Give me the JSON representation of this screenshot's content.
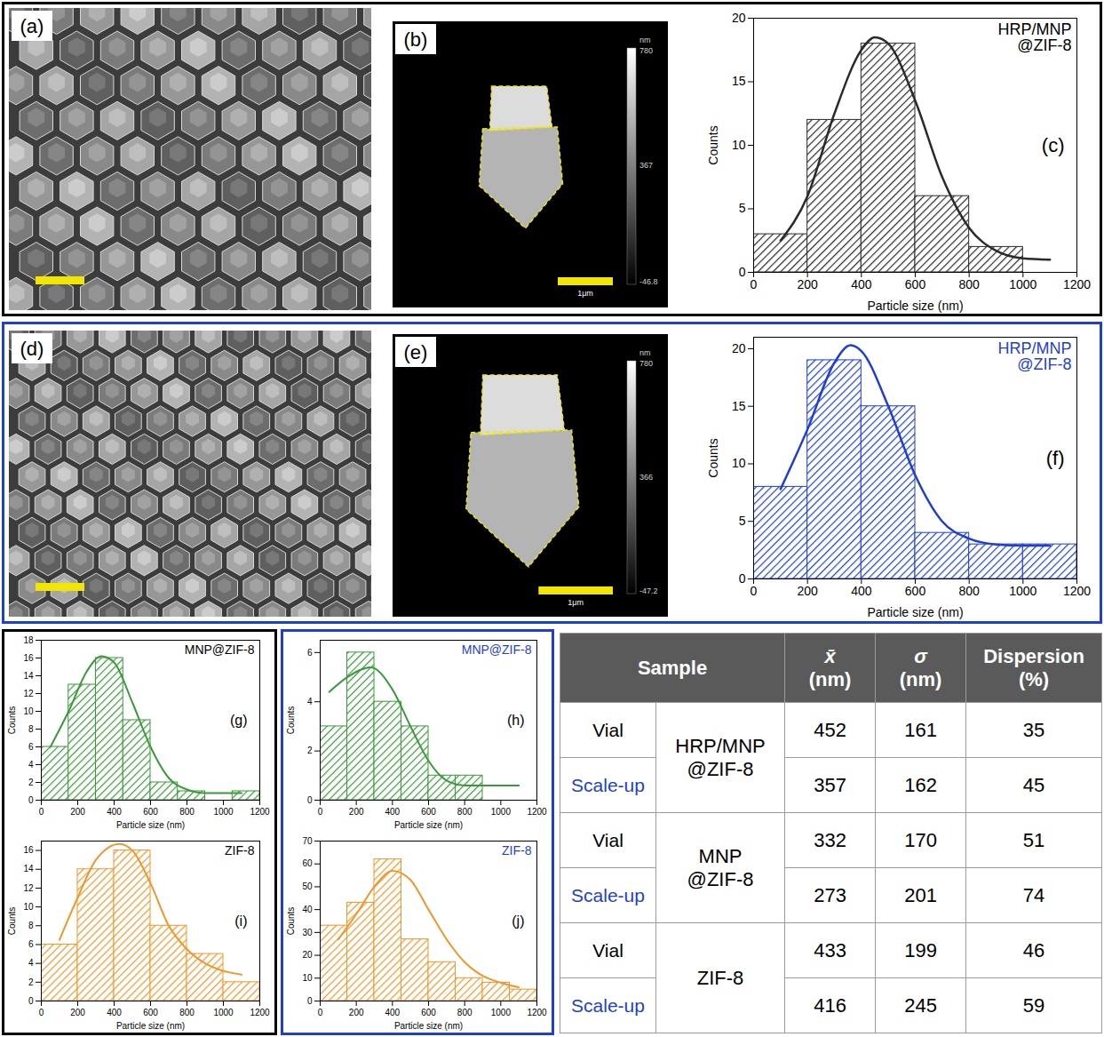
{
  "chart_data": [
    {
      "panel": "(c)",
      "type": "histogram",
      "title": "HRP/MNP @ZIF-8",
      "color": "#2a2a2a",
      "bins": [
        0,
        200,
        400,
        600,
        800,
        1000
      ],
      "counts": [
        3,
        12,
        18,
        6,
        2
      ],
      "fit": {
        "x": [
          100,
          200,
          300,
          400,
          450,
          500,
          600,
          700,
          800,
          900,
          1000,
          1100
        ],
        "y": [
          2.5,
          6,
          12.5,
          17.5,
          18.5,
          18,
          13.5,
          7.5,
          3.5,
          1.7,
          1.1,
          1.0
        ]
      },
      "x_label": "Particle size (nm)",
      "y_label": "Counts",
      "xlim": [
        0,
        1200
      ],
      "xticks": [
        0,
        200,
        400,
        600,
        800,
        1000,
        1200
      ],
      "ylim": [
        0,
        20
      ],
      "yticks": [
        0,
        5,
        10,
        15,
        20
      ]
    },
    {
      "panel": "(f)",
      "type": "histogram",
      "title": "HRP/MNP @ZIF-8",
      "color": "#1f3fd0",
      "bins": [
        0,
        200,
        400,
        600,
        800,
        1000,
        1200
      ],
      "counts": [
        8,
        19,
        15,
        4,
        3,
        3
      ],
      "fit": {
        "x": [
          100,
          200,
          300,
          360,
          400,
          500,
          600,
          700,
          800,
          900,
          1000,
          1100
        ],
        "y": [
          7.8,
          13,
          18.8,
          20.3,
          19.8,
          15,
          9,
          5,
          3.5,
          3,
          2.9,
          2.9
        ]
      },
      "x_label": "Particle size (nm)",
      "y_label": "Counts",
      "xlim": [
        0,
        1200
      ],
      "xticks": [
        0,
        200,
        400,
        600,
        800,
        1000,
        1200
      ],
      "ylim": [
        0,
        21
      ],
      "yticks": [
        0,
        5,
        10,
        15,
        20
      ]
    },
    {
      "panel": "(g)",
      "type": "histogram",
      "title": "MNP@ZIF-8",
      "color": "#3a9a3a",
      "bins": [
        0,
        150,
        300,
        450,
        600,
        750,
        900,
        1050,
        1200
      ],
      "counts": [
        6,
        13,
        16,
        9,
        2,
        1,
        0,
        1
      ],
      "fit": {
        "x": [
          50,
          150,
          250,
          330,
          400,
          500,
          600,
          700,
          800,
          900,
          1000,
          1100
        ],
        "y": [
          6,
          10,
          14.5,
          16.2,
          15.5,
          11,
          6,
          2.5,
          1.2,
          0.8,
          0.8,
          0.8
        ]
      },
      "x_label": "Particle size (nm)",
      "y_label": "Counts",
      "xlim": [
        0,
        1200
      ],
      "xticks": [
        0,
        200,
        400,
        600,
        800,
        1000,
        1200
      ],
      "ylim": [
        0,
        18
      ],
      "yticks": [
        0,
        2,
        4,
        6,
        8,
        10,
        12,
        14,
        16,
        18
      ]
    },
    {
      "panel": "(h)",
      "type": "histogram",
      "title": "MNP@ZIF-8",
      "color": "#3a9a3a",
      "bins": [
        0,
        150,
        300,
        450,
        600,
        750,
        900
      ],
      "counts": [
        3,
        6,
        4,
        3,
        1,
        1
      ],
      "fit": {
        "x": [
          50,
          150,
          280,
          400,
          500,
          600,
          700,
          800,
          900,
          1000,
          1100
        ],
        "y": [
          4.4,
          5,
          5.4,
          4.5,
          3,
          1.6,
          0.8,
          0.6,
          0.6,
          0.6,
          0.6
        ]
      },
      "x_label": "Particle size (nm)",
      "y_label": "Counts",
      "xlim": [
        0,
        1200
      ],
      "xticks": [
        0,
        200,
        400,
        600,
        800,
        1000,
        1200
      ],
      "ylim": [
        0,
        6.5
      ],
      "yticks": [
        0,
        2,
        4,
        6
      ]
    },
    {
      "panel": "(i)",
      "type": "histogram",
      "title": "ZIF-8",
      "color": "#f0962a",
      "bins": [
        0,
        200,
        400,
        600,
        800,
        1000,
        1200
      ],
      "counts": [
        6,
        14,
        16,
        8,
        5,
        2
      ],
      "fit": {
        "x": [
          100,
          200,
          300,
          430,
          500,
          600,
          700,
          800,
          900,
          1000,
          1100
        ],
        "y": [
          6.5,
          11,
          15,
          16.7,
          16,
          12.5,
          8,
          5.5,
          4,
          3.2,
          2.8
        ]
      },
      "x_label": "Particle size (nm)",
      "y_label": "Counts",
      "xlim": [
        0,
        1200
      ],
      "xticks": [
        0,
        200,
        400,
        600,
        800,
        1000,
        1200
      ],
      "ylim": [
        0,
        17
      ],
      "yticks": [
        0,
        2,
        4,
        6,
        8,
        10,
        12,
        14,
        16
      ]
    },
    {
      "panel": "(j)",
      "type": "histogram",
      "title": "ZIF-8",
      "color": "#f0962a",
      "bins": [
        0,
        150,
        300,
        450,
        600,
        750,
        900,
        1050,
        1200
      ],
      "counts": [
        33,
        43,
        62,
        27,
        17,
        10,
        8,
        5
      ],
      "fit": {
        "x": [
          100,
          200,
          300,
          400,
          500,
          600,
          700,
          800,
          900,
          1000,
          1100
        ],
        "y": [
          27,
          38,
          50,
          57,
          53,
          40,
          27,
          17,
          11,
          8,
          6
        ]
      },
      "x_label": "Particle size (nm)",
      "y_label": "Counts",
      "xlim": [
        0,
        1200
      ],
      "xticks": [
        0,
        200,
        400,
        600,
        800,
        1000,
        1200
      ],
      "ylim": [
        0,
        70
      ],
      "yticks": [
        0,
        10,
        20,
        30,
        40,
        50,
        60,
        70
      ]
    }
  ],
  "images": [
    {
      "panel": "(a)"
    },
    {
      "panel": "(b)",
      "scale_bar": "1μm",
      "colorbar": {
        "unit": "nm",
        "lim": [
          -46.8,
          780
        ],
        "ticks": [
          -46.8,
          367,
          780
        ]
      }
    },
    {
      "panel": "(d)"
    },
    {
      "panel": "(e)",
      "scale_bar": "1μm",
      "colorbar": {
        "unit": "nm",
        "lim": [
          -47.2,
          780
        ],
        "ticks": [
          -47.2,
          366,
          780
        ]
      }
    }
  ],
  "table": {
    "header": {
      "sample": "Sample",
      "columns": [
        {
          "symbol": "x̄",
          "unit": "(nm)"
        },
        {
          "symbol": "σ",
          "unit": "(nm)"
        },
        {
          "symbol": "Dispersion",
          "unit": "(%)"
        }
      ]
    },
    "groups": [
      {
        "sample": "HRP/MNP @ZIF-8",
        "rows": [
          {
            "batch": "Vial",
            "values": [
              452,
              161,
              35
            ]
          },
          {
            "batch": "Scale-up",
            "values": [
              357,
              162,
              45
            ]
          }
        ]
      },
      {
        "sample": "MNP @ZIF-8",
        "rows": [
          {
            "batch": "Vial",
            "values": [
              332,
              170,
              51
            ]
          },
          {
            "batch": "Scale-up",
            "values": [
              273,
              201,
              74
            ]
          }
        ]
      },
      {
        "sample": "ZIF-8",
        "rows": [
          {
            "batch": "Vial",
            "values": [
              433,
              199,
              46
            ]
          },
          {
            "batch": "Scale-up",
            "values": [
              416,
              245,
              59
            ]
          }
        ]
      }
    ]
  }
}
